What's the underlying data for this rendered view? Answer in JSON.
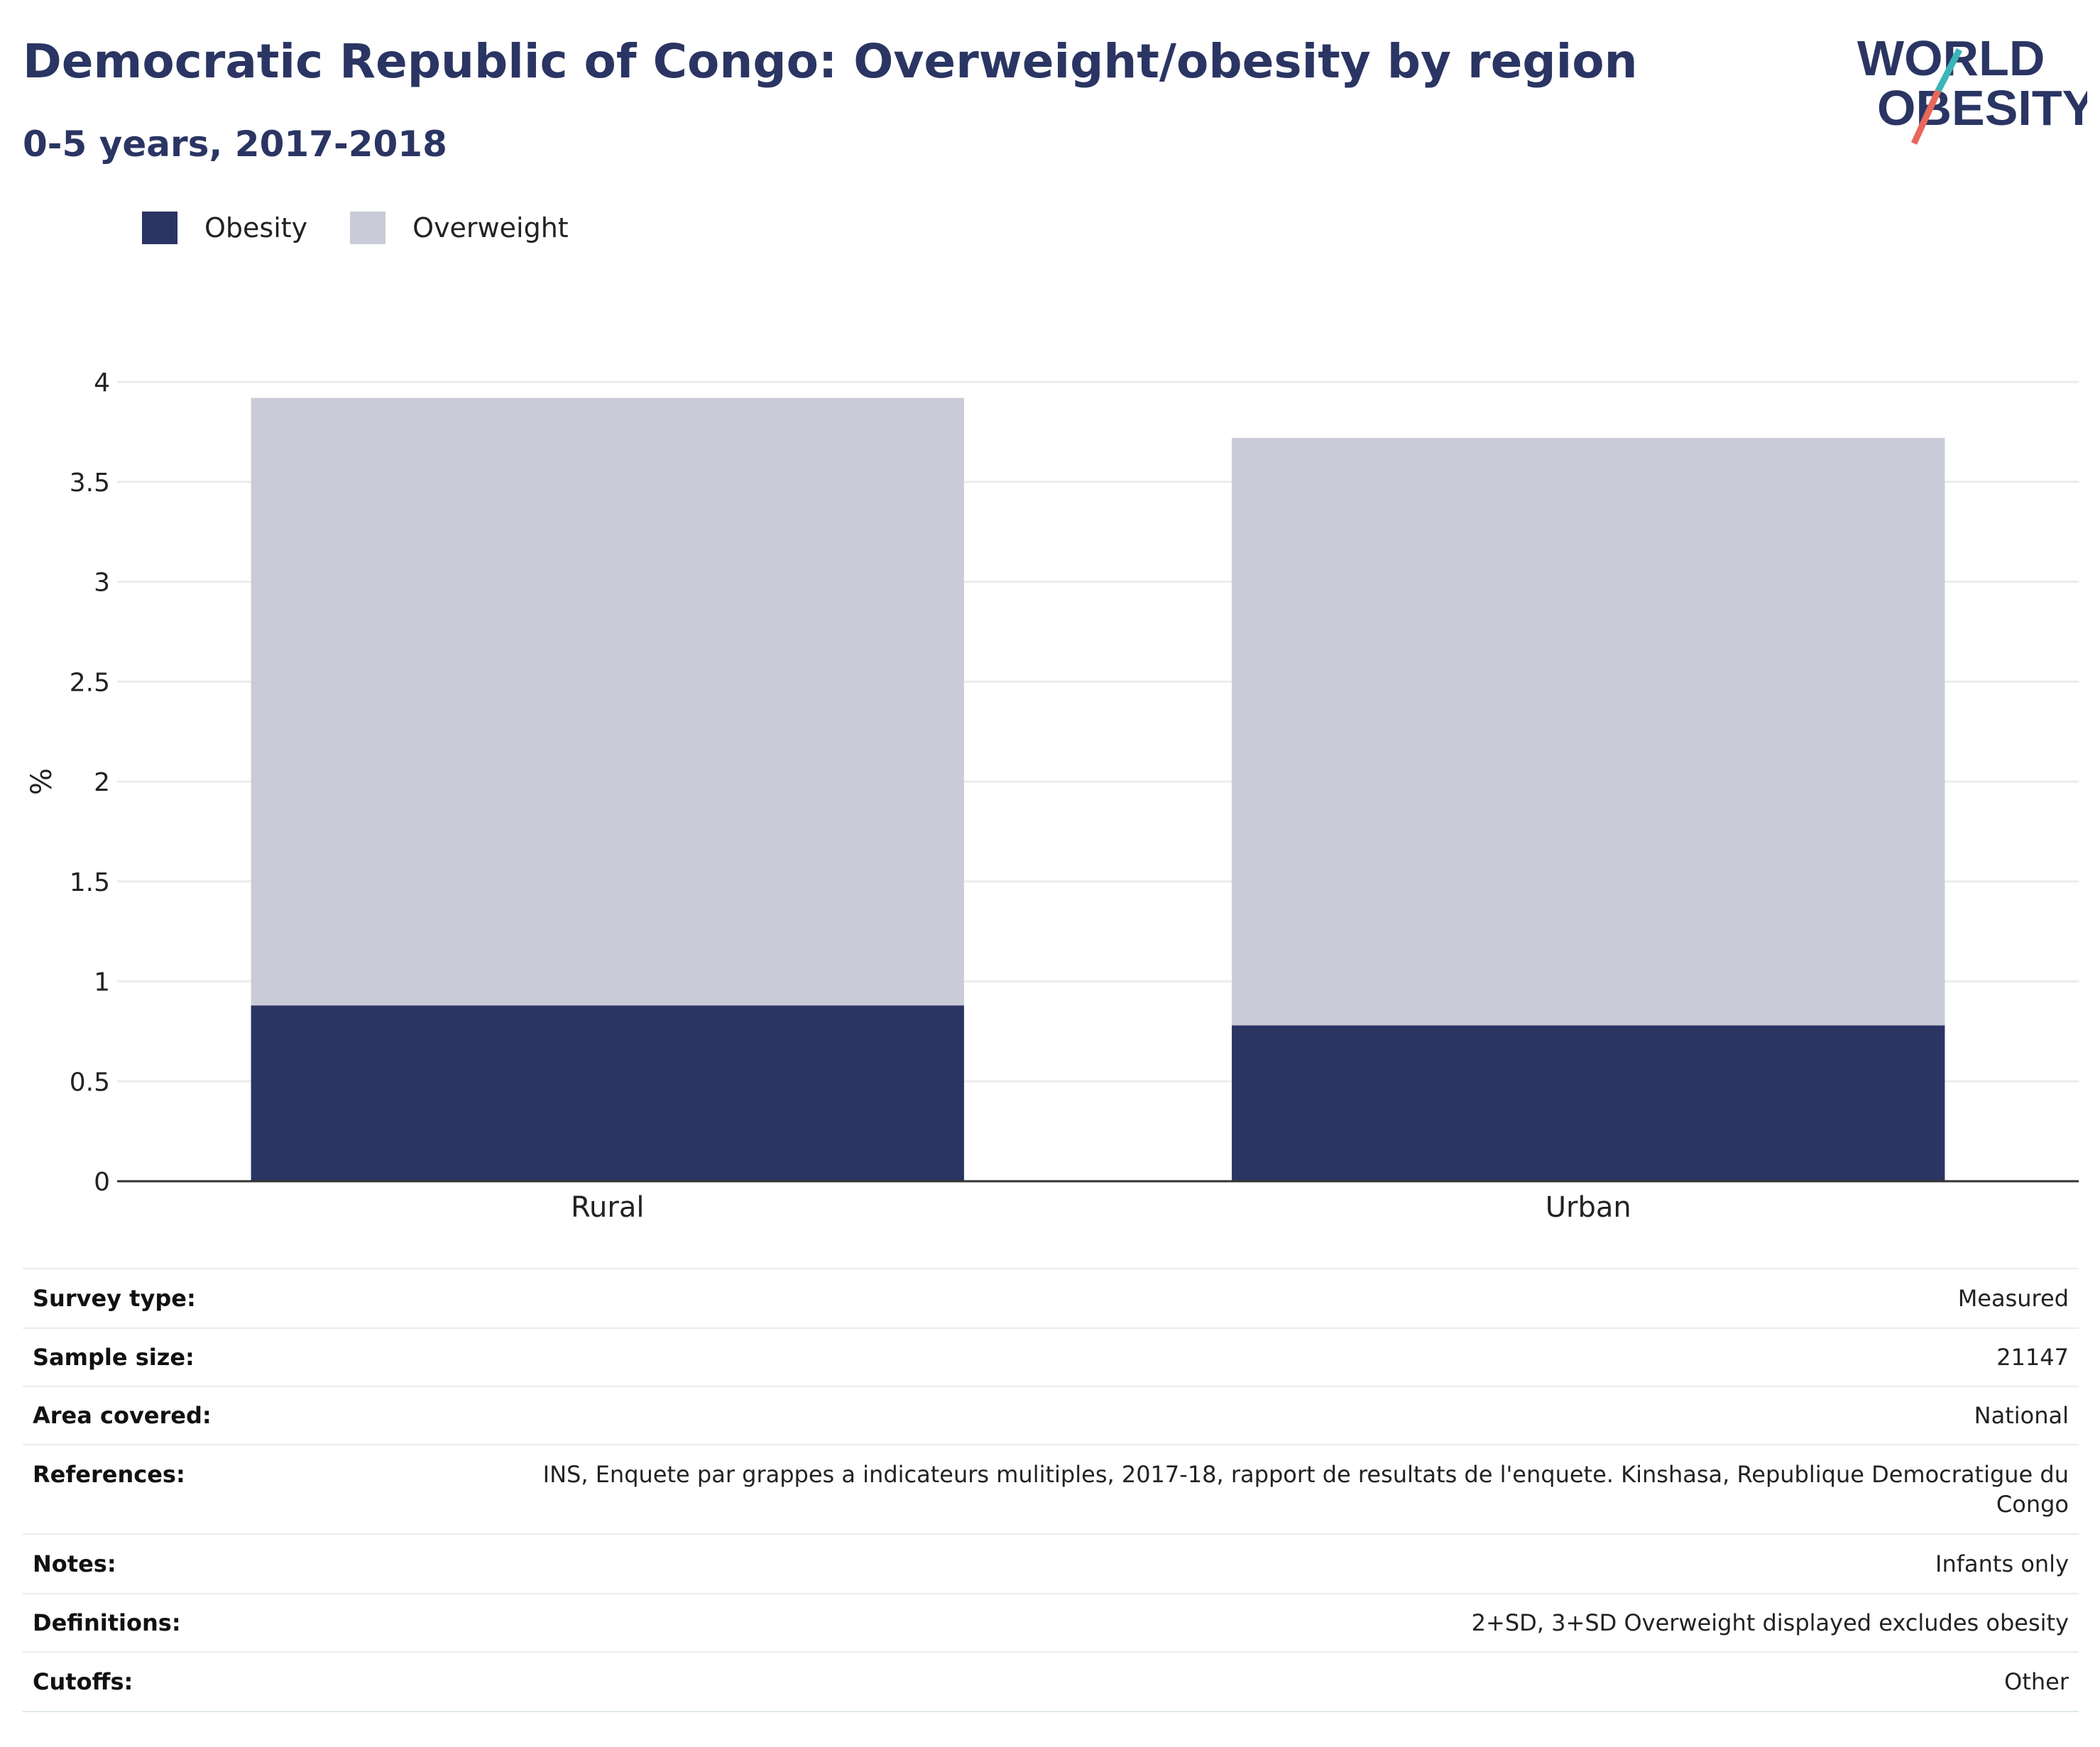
{
  "header": {
    "title": "Democratic Republic of Congo: Overweight/obesity by region",
    "subtitle": "0-5 years, 2017-2018"
  },
  "logo": {
    "line1": "WORLD",
    "line2": "OBESITY",
    "accent_teal": "#3ab6b8",
    "accent_coral": "#e8675a",
    "text_color": "#2a3563"
  },
  "legend": {
    "items": [
      {
        "label": "Obesity",
        "color": "#2a3563"
      },
      {
        "label": "Overweight",
        "color": "#c9ccd8"
      }
    ]
  },
  "chart_data": {
    "type": "bar",
    "stacked": true,
    "categories": [
      "Rural",
      "Urban"
    ],
    "series": [
      {
        "name": "Obesity",
        "color": "#2a3563",
        "values": [
          0.88,
          0.78
        ]
      },
      {
        "name": "Overweight",
        "color": "#c9ccd8",
        "values": [
          3.04,
          2.94
        ]
      }
    ],
    "ylabel": "%",
    "ylim": [
      0,
      4
    ],
    "yticks": [
      "0",
      "0.5",
      "1",
      "1.5",
      "2",
      "2.5",
      "3",
      "3.5",
      "4"
    ],
    "grid": true,
    "legend_position": "top-left"
  },
  "info": [
    {
      "label": "Survey type:",
      "value": "Measured"
    },
    {
      "label": "Sample size:",
      "value": "21147"
    },
    {
      "label": "Area covered:",
      "value": "National"
    },
    {
      "label": "References:",
      "value": "INS, Enquete par grappes a indicateurs mulitiples, 2017-18, rapport de resultats de l'enquete. Kinshasa, Republique Democratigue du",
      "value2": "Congo"
    },
    {
      "label": "Notes:",
      "value": "Infants only"
    },
    {
      "label": "Definitions:",
      "value": "2+SD, 3+SD Overweight displayed excludes obesity"
    },
    {
      "label": "Cutoffs:",
      "value": "Other"
    }
  ]
}
